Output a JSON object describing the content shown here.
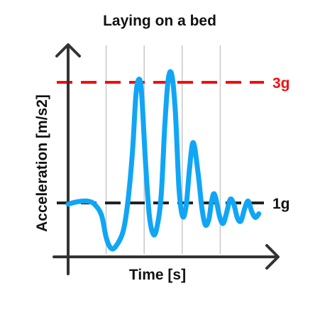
{
  "chart_data": {
    "type": "line",
    "title": "Laying on a bed",
    "xlabel": "Time [s]",
    "ylabel": "Acceleration [m/s2]",
    "grid": "vertical",
    "xlim": [
      0,
      10
    ],
    "ylim": [
      0,
      4
    ],
    "vertical_gridlines_x": [
      2,
      4,
      6,
      8
    ],
    "reference_lines": [
      {
        "label": "3g",
        "value": 3,
        "color": "#ee1111",
        "style": "dashed"
      },
      {
        "label": "1g",
        "value": 1,
        "color": "#222222",
        "style": "dashed"
      }
    ],
    "series": [
      {
        "color": "#10a6f5",
        "x": [
          0.0,
          0.4,
          0.8,
          1.1,
          1.4,
          1.6,
          1.8,
          2.0,
          2.3,
          2.5,
          2.7,
          2.85,
          3.0,
          3.1,
          3.25,
          3.4,
          3.55,
          3.7,
          3.9,
          4.05,
          4.2,
          4.35,
          4.5,
          4.65,
          4.8,
          4.95,
          5.1,
          5.25,
          5.45,
          5.6,
          5.75,
          5.9,
          6.0,
          6.1,
          6.2,
          6.35,
          6.5,
          6.65,
          6.8,
          6.95,
          7.1,
          7.25,
          7.4,
          7.55,
          7.7,
          7.85,
          8.0
        ],
        "y": [
          0.98,
          1.02,
          1.03,
          0.98,
          0.8,
          0.42,
          0.25,
          0.28,
          0.52,
          1.0,
          1.85,
          2.82,
          3.05,
          2.7,
          1.65,
          0.82,
          0.5,
          0.55,
          1.1,
          2.25,
          3.05,
          3.12,
          2.5,
          1.25,
          0.78,
          0.95,
          1.6,
          2.0,
          1.5,
          0.95,
          0.64,
          0.72,
          0.98,
          1.15,
          1.07,
          0.78,
          0.66,
          0.84,
          1.06,
          0.98,
          0.75,
          0.7,
          0.9,
          1.03,
          0.86,
          0.76,
          0.82
        ]
      }
    ]
  }
}
